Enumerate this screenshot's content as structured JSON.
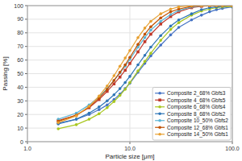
{
  "chart_data": {
    "type": "line",
    "xlabel": "Particle size [μm]",
    "ylabel": "Passing [%]",
    "log": "x",
    "grid": true,
    "legend": "lower right",
    "xlim": [
      1.0,
      100.0
    ],
    "ylim": [
      0,
      100
    ],
    "xticks": [
      {
        "value": 1,
        "label": "1.0"
      },
      {
        "value": 10,
        "label": "10.0"
      },
      {
        "value": 100,
        "label": "100.0"
      }
    ],
    "yticks": [
      0,
      10,
      20,
      30,
      40,
      50,
      60,
      70,
      80,
      90,
      100
    ],
    "x": [
      2.0,
      3.0,
      4.0,
      5.0,
      6.0,
      7.0,
      8.0,
      9.0,
      10.0,
      12.0,
      14.0,
      16.0,
      20.0,
      25.0,
      30.0,
      40.0,
      50.0,
      60.0,
      70.0,
      80.0,
      100.0
    ],
    "series": [
      {
        "name": "Composite 2_68% Gbfs3",
        "color": "#4472c4",
        "marker": "o",
        "values": [
          13.5,
          16.5,
          20.0,
          23.5,
          27.0,
          31.0,
          35.0,
          39.0,
          43.0,
          51.0,
          57.5,
          63.0,
          71.0,
          78.5,
          84.0,
          89.5,
          93.0,
          95.5,
          97.0,
          98.0,
          99.0
        ]
      },
      {
        "name": "Composite 4_68% Gbfs5",
        "color": "#c0392b",
        "marker": "s",
        "values": [
          15.5,
          19.5,
          25.0,
          31.0,
          37.0,
          42.5,
          47.5,
          52.5,
          57.5,
          66.0,
          73.5,
          79.0,
          86.5,
          92.0,
          95.5,
          98.5,
          99.5,
          100.0,
          100.0,
          100.0,
          100.0
        ]
      },
      {
        "name": "Composite 6_68% Gbfs4",
        "color": "#a9c720",
        "marker": "o",
        "values": [
          9.5,
          12.5,
          16.5,
          20.5,
          25.0,
          29.5,
          34.0,
          38.5,
          43.5,
          52.0,
          59.0,
          65.0,
          74.5,
          82.5,
          87.5,
          93.0,
          96.0,
          97.5,
          98.5,
          99.0,
          99.5
        ]
      },
      {
        "name": "Composite 8_68% Gbfs2",
        "color": "#2e75b6",
        "marker": "o",
        "values": [
          13.0,
          16.5,
          21.0,
          25.5,
          30.0,
          34.5,
          39.0,
          43.5,
          48.0,
          56.5,
          63.5,
          69.5,
          78.0,
          85.0,
          89.5,
          94.0,
          97.0,
          98.5,
          99.0,
          99.5,
          100.0
        ]
      },
      {
        "name": "Composite 10_50% Gbfs2",
        "color": "#5ab4d6",
        "marker": "o",
        "values": [
          16.5,
          21.0,
          27.0,
          33.0,
          39.0,
          45.0,
          50.5,
          55.5,
          60.5,
          69.5,
          76.5,
          82.0,
          88.5,
          93.5,
          96.5,
          99.0,
          99.8,
          100.0,
          100.0,
          100.0,
          100.0
        ]
      },
      {
        "name": "Composite 12_68% Gbfs1",
        "color": "#c05000",
        "marker": "o",
        "values": [
          15.0,
          19.5,
          25.5,
          32.0,
          38.5,
          45.0,
          51.0,
          56.5,
          62.0,
          71.5,
          79.0,
          84.5,
          91.0,
          95.5,
          97.5,
          99.5,
          100.0,
          100.0,
          100.0,
          100.0,
          100.0
        ]
      },
      {
        "name": "Composite 14_50% Gbfs1",
        "color": "#e8a030",
        "marker": "o",
        "values": [
          14.0,
          19.0,
          26.0,
          33.5,
          41.0,
          48.5,
          55.5,
          61.5,
          67.0,
          76.5,
          83.5,
          88.5,
          94.0,
          97.5,
          99.0,
          100.0,
          100.0,
          100.0,
          100.0,
          100.0,
          100.0
        ]
      }
    ]
  }
}
